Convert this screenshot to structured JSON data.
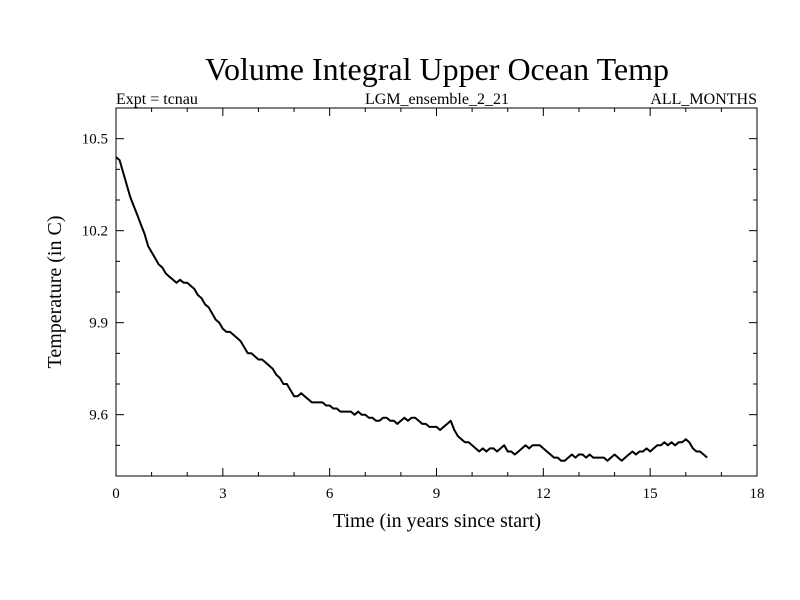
{
  "chart_data": {
    "type": "line",
    "title": "Volume Integral Upper Ocean Temp",
    "subtitle_left": "Expt = tcnau",
    "subtitle_center": "LGM_ensemble_2_21",
    "subtitle_right": "ALL_MONTHS",
    "xlabel": "Time (in years since start)",
    "ylabel": "Temperature (in C)",
    "xlim": [
      0,
      18
    ],
    "ylim": [
      9.4,
      10.6
    ],
    "x_ticks": [
      0,
      3,
      6,
      9,
      12,
      15,
      18
    ],
    "x_tick_labels": [
      "0",
      "3",
      "6",
      "9",
      "12",
      "15",
      "18"
    ],
    "y_ticks": [
      9.6,
      9.9,
      10.2,
      10.5
    ],
    "y_tick_labels": [
      "9.6",
      "9.9",
      "10.2",
      "10.5"
    ],
    "grid": false,
    "series": [
      {
        "name": "Temperature",
        "color": "#000000",
        "x": [
          0.0,
          0.1,
          0.2,
          0.3,
          0.4,
          0.5,
          0.6,
          0.7,
          0.8,
          0.9,
          1.0,
          1.1,
          1.2,
          1.3,
          1.4,
          1.5,
          1.6,
          1.7,
          1.8,
          1.9,
          2.0,
          2.1,
          2.2,
          2.3,
          2.4,
          2.5,
          2.6,
          2.7,
          2.8,
          2.9,
          3.0,
          3.1,
          3.2,
          3.3,
          3.4,
          3.5,
          3.6,
          3.7,
          3.8,
          3.9,
          4.0,
          4.1,
          4.2,
          4.3,
          4.4,
          4.5,
          4.6,
          4.7,
          4.8,
          4.9,
          5.0,
          5.1,
          5.2,
          5.3,
          5.4,
          5.5,
          5.6,
          5.7,
          5.8,
          5.9,
          6.0,
          6.1,
          6.2,
          6.3,
          6.4,
          6.5,
          6.6,
          6.7,
          6.8,
          6.9,
          7.0,
          7.1,
          7.2,
          7.3,
          7.4,
          7.5,
          7.6,
          7.7,
          7.8,
          7.9,
          8.0,
          8.1,
          8.2,
          8.3,
          8.4,
          8.5,
          8.6,
          8.7,
          8.8,
          8.9,
          9.0,
          9.1,
          9.2,
          9.3,
          9.4,
          9.5,
          9.6,
          9.7,
          9.8,
          9.9,
          10.0,
          10.1,
          10.2,
          10.3,
          10.4,
          10.5,
          10.6,
          10.7,
          10.8,
          10.9,
          11.0,
          11.1,
          11.2,
          11.3,
          11.4,
          11.5,
          11.6,
          11.7,
          11.8,
          11.9,
          12.0,
          12.1,
          12.2,
          12.3,
          12.4,
          12.5,
          12.6,
          12.7,
          12.8,
          12.9,
          13.0,
          13.1,
          13.2,
          13.3,
          13.4,
          13.5,
          13.6,
          13.7,
          13.8,
          13.9,
          14.0,
          14.1,
          14.2,
          14.3,
          14.4,
          14.5,
          14.6,
          14.7,
          14.8,
          14.9,
          15.0,
          15.1,
          15.2,
          15.3,
          15.4,
          15.5,
          15.6,
          15.7,
          15.8,
          15.9,
          16.0,
          16.1,
          16.2,
          16.3,
          16.4,
          16.5,
          16.6
        ],
        "y": [
          10.44,
          10.43,
          10.39,
          10.35,
          10.31,
          10.28,
          10.25,
          10.22,
          10.19,
          10.15,
          10.13,
          10.11,
          10.09,
          10.08,
          10.06,
          10.05,
          10.04,
          10.03,
          10.04,
          10.03,
          10.03,
          10.02,
          10.01,
          9.99,
          9.98,
          9.96,
          9.95,
          9.93,
          9.91,
          9.9,
          9.88,
          9.87,
          9.87,
          9.86,
          9.85,
          9.84,
          9.82,
          9.8,
          9.8,
          9.79,
          9.78,
          9.78,
          9.77,
          9.76,
          9.75,
          9.73,
          9.72,
          9.7,
          9.7,
          9.68,
          9.66,
          9.66,
          9.67,
          9.66,
          9.65,
          9.64,
          9.64,
          9.64,
          9.64,
          9.63,
          9.63,
          9.62,
          9.62,
          9.61,
          9.61,
          9.61,
          9.61,
          9.6,
          9.61,
          9.6,
          9.6,
          9.59,
          9.59,
          9.58,
          9.58,
          9.59,
          9.59,
          9.58,
          9.58,
          9.57,
          9.58,
          9.59,
          9.58,
          9.59,
          9.59,
          9.58,
          9.57,
          9.57,
          9.56,
          9.56,
          9.56,
          9.55,
          9.56,
          9.57,
          9.58,
          9.55,
          9.53,
          9.52,
          9.51,
          9.51,
          9.5,
          9.49,
          9.48,
          9.49,
          9.48,
          9.49,
          9.49,
          9.48,
          9.49,
          9.5,
          9.48,
          9.48,
          9.47,
          9.48,
          9.49,
          9.5,
          9.49,
          9.5,
          9.5,
          9.5,
          9.49,
          9.48,
          9.47,
          9.46,
          9.46,
          9.45,
          9.45,
          9.46,
          9.47,
          9.46,
          9.47,
          9.47,
          9.46,
          9.47,
          9.46,
          9.46,
          9.46,
          9.46,
          9.45,
          9.46,
          9.47,
          9.46,
          9.45,
          9.46,
          9.47,
          9.48,
          9.47,
          9.48,
          9.48,
          9.49,
          9.48,
          9.49,
          9.5,
          9.5,
          9.51,
          9.5,
          9.51,
          9.5,
          9.51,
          9.51,
          9.52,
          9.51,
          9.49,
          9.48,
          9.48,
          9.47,
          9.46
        ]
      }
    ]
  }
}
